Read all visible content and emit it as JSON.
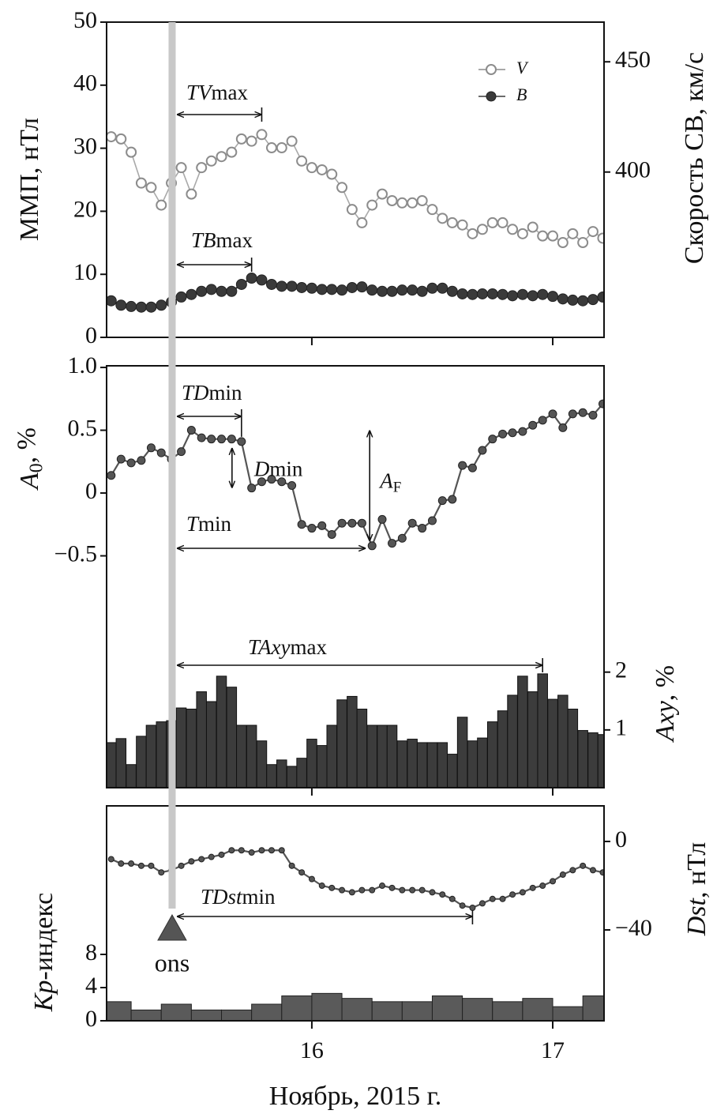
{
  "chart_data": [
    {
      "type": "line",
      "ylabel": {
        "text": "ММП, нТл"
      },
      "y2label": {
        "text": "Скорость СВ, км/с"
      },
      "xlim": [
        15.148,
        17.213
      ],
      "xticks": [
        16,
        17
      ],
      "ylim": [
        0,
        50
      ],
      "yticks": [
        0,
        10,
        20,
        30,
        40,
        50
      ],
      "y2lim": [
        325,
        468
      ],
      "y2ticks": [
        400,
        450
      ],
      "legend": "upper right",
      "x": [
        15.167,
        15.208,
        15.25,
        15.292,
        15.333,
        15.375,
        15.417,
        15.458,
        15.5,
        15.542,
        15.583,
        15.625,
        15.667,
        15.708,
        15.75,
        15.792,
        15.833,
        15.875,
        15.917,
        15.958,
        16,
        16.042,
        16.083,
        16.125,
        16.167,
        16.208,
        16.25,
        16.292,
        16.333,
        16.375,
        16.417,
        16.458,
        16.5,
        16.542,
        16.583,
        16.625,
        16.667,
        16.708,
        16.75,
        16.792,
        16.833,
        16.875,
        16.917,
        16.958,
        17,
        17.042,
        17.083,
        17.125,
        17.167,
        17.208
      ],
      "series": [
        {
          "name": "V",
          "type": "line",
          "marker": "open",
          "color": "#8c8c8c",
          "axis": "y2",
          "values": [
            416,
            415,
            409,
            395,
            393,
            385,
            395,
            402,
            390,
            402,
            405,
            407,
            409,
            415,
            414,
            417,
            411,
            411,
            414,
            405,
            402,
            401,
            399,
            393,
            383,
            377,
            385,
            390,
            387,
            386,
            386,
            387,
            383,
            379,
            377,
            376,
            372,
            374,
            377,
            377,
            374,
            372,
            375,
            371,
            371,
            368,
            372,
            368,
            373,
            370
          ]
        },
        {
          "name": "B",
          "type": "line",
          "marker": "filled",
          "color": "#3a3a3a",
          "values": [
            5.8,
            5.1,
            4.9,
            4.8,
            4.8,
            5.1,
            5.6,
            6.4,
            6.8,
            7.3,
            7.6,
            7.3,
            7.3,
            8.4,
            9.4,
            9.1,
            8.4,
            8.1,
            8.1,
            7.9,
            7.8,
            7.6,
            7.6,
            7.5,
            7.9,
            8.0,
            7.5,
            7.3,
            7.3,
            7.5,
            7.5,
            7.3,
            7.8,
            7.8,
            7.3,
            6.9,
            6.8,
            6.9,
            6.9,
            6.8,
            6.6,
            6.8,
            6.6,
            6.8,
            6.5,
            6.1,
            5.9,
            5.8,
            6.0,
            6.4
          ]
        }
      ],
      "annotations": [
        {
          "italic": "TV",
          "text": "max"
        },
        {
          "italic": "TB",
          "text": "max"
        }
      ]
    },
    {
      "type": "combo",
      "ylabel": {
        "italic": "A",
        "sub": "0",
        "text": ", %"
      },
      "y2label": {
        "italic": "Axy",
        "text": ", %"
      },
      "xlim": [
        15.148,
        17.213
      ],
      "xticks": [
        16,
        17
      ],
      "ylim": [
        -2.346,
        1.013
      ],
      "yticks": [
        {
          "value": 1,
          "label": "1.0"
        },
        0.5,
        0,
        {
          "value": -0.5,
          "label": "−0.5"
        }
      ],
      "y2lim": [
        0,
        7.3
      ],
      "y2ticks": [
        1,
        2
      ],
      "x": [
        15.167,
        15.208,
        15.25,
        15.292,
        15.333,
        15.375,
        15.417,
        15.458,
        15.5,
        15.542,
        15.583,
        15.625,
        15.667,
        15.708,
        15.75,
        15.792,
        15.833,
        15.875,
        15.917,
        15.958,
        16,
        16.042,
        16.083,
        16.125,
        16.167,
        16.208,
        16.25,
        16.292,
        16.333,
        16.375,
        16.417,
        16.458,
        16.5,
        16.542,
        16.583,
        16.625,
        16.667,
        16.708,
        16.75,
        16.792,
        16.833,
        16.875,
        16.917,
        16.958,
        17,
        17.042,
        17.083,
        17.125,
        17.167,
        17.208
      ],
      "series": [
        {
          "type": "bar",
          "color": "#3c3c3c",
          "axis": "y2",
          "values": [
            0.78,
            0.85,
            0.4,
            0.89,
            1.08,
            1.14,
            1.16,
            1.38,
            1.36,
            1.66,
            1.49,
            1.93,
            1.74,
            1.08,
            1.08,
            0.81,
            0.4,
            0.48,
            0.37,
            0.51,
            0.84,
            0.73,
            1.08,
            1.52,
            1.58,
            1.36,
            1.08,
            1.08,
            1.08,
            0.81,
            0.84,
            0.78,
            0.78,
            0.78,
            0.58,
            1.22,
            0.81,
            0.86,
            1.14,
            1.33,
            1.6,
            1.93,
            1.66,
            1.97,
            1.53,
            1.6,
            1.36,
            0.99,
            0.95,
            0.92
          ]
        },
        {
          "type": "line",
          "marker": "filled",
          "color": "#555555",
          "values": [
            0.14,
            0.27,
            0.24,
            0.26,
            0.36,
            0.32,
            0.27,
            0.33,
            0.5,
            0.44,
            0.43,
            0.43,
            0.43,
            0.41,
            0.04,
            0.09,
            0.11,
            0.09,
            0.06,
            -0.25,
            -0.28,
            -0.26,
            -0.33,
            -0.24,
            -0.24,
            -0.24,
            -0.42,
            -0.21,
            -0.4,
            -0.36,
            -0.24,
            -0.28,
            -0.22,
            -0.06,
            -0.05,
            0.22,
            0.2,
            0.34,
            0.43,
            0.47,
            0.48,
            0.49,
            0.54,
            0.58,
            0.63,
            0.52,
            0.63,
            0.64,
            0.62,
            0.71
          ]
        }
      ],
      "annotations": [
        {
          "italic": "TD",
          "text": "min"
        },
        {
          "italic": "D",
          "text": "min"
        },
        {
          "italic": "T",
          "text": "min"
        },
        {
          "italic": "A",
          "sub": "F"
        },
        {
          "italic": "TAxy",
          "text": "max"
        }
      ]
    },
    {
      "type": "combo",
      "ylabel": {
        "italic": "Kp",
        "text": "-индекс"
      },
      "y2label": {
        "italic": "Dst",
        "text": ", нТл"
      },
      "xlabel": "Ноябрь, 2015 г.",
      "xlim": [
        15.148,
        17.213
      ],
      "xticks": [
        16,
        17
      ],
      "ylim": [
        0,
        25.9
      ],
      "yticks": [
        0,
        4,
        8
      ],
      "y2lim": [
        -81.1,
        16.1
      ],
      "y2ticks": [
        0,
        {
          "value": -40,
          "label": "−40"
        }
      ],
      "x": [
        15.167,
        15.208,
        15.25,
        15.292,
        15.333,
        15.375,
        15.417,
        15.458,
        15.5,
        15.542,
        15.583,
        15.625,
        15.667,
        15.708,
        15.75,
        15.792,
        15.833,
        15.875,
        15.917,
        15.958,
        16,
        16.042,
        16.083,
        16.125,
        16.167,
        16.208,
        16.25,
        16.292,
        16.333,
        16.375,
        16.417,
        16.458,
        16.5,
        16.542,
        16.583,
        16.625,
        16.667,
        16.708,
        16.75,
        16.792,
        16.833,
        16.875,
        16.917,
        16.958,
        17,
        17.042,
        17.083,
        17.125,
        17.167,
        17.208
      ],
      "series": [
        {
          "type": "line",
          "marker": "filled",
          "color": "#555555",
          "axis": "y2",
          "values": [
            -8,
            -10,
            -10,
            -11,
            -11,
            -14,
            -13,
            -11,
            -9,
            -8,
            -7,
            -6,
            -4,
            -4,
            -5,
            -4,
            -4,
            -4,
            -11,
            -14,
            -17,
            -20,
            -21,
            -22,
            -23,
            -22,
            -22,
            -20,
            -21,
            -22,
            -22,
            -22,
            -23,
            -24,
            -26,
            -29,
            -30,
            -28,
            -26,
            -26,
            -24,
            -23,
            -21,
            -20,
            -18,
            -15,
            -13,
            -11,
            -13,
            -14
          ]
        },
        {
          "type": "histogram",
          "color": "#5a5a5a",
          "bins": [
            15.125,
            15.25,
            15.375,
            15.5,
            15.625,
            15.75,
            15.875,
            16,
            16.125,
            16.25,
            16.375,
            16.5,
            16.625,
            16.75,
            16.875,
            17,
            17.125,
            17.25
          ],
          "values": [
            2.3,
            1.3,
            2,
            1.3,
            1.3,
            2,
            3,
            3.3,
            2.7,
            2.3,
            2.3,
            3,
            2.7,
            2.3,
            2.7,
            1.7,
            3
          ]
        }
      ],
      "annotations": [
        {
          "italic": "TDst",
          "text": "min"
        }
      ],
      "onset": {
        "x": 15.42,
        "label": "ons"
      }
    }
  ]
}
